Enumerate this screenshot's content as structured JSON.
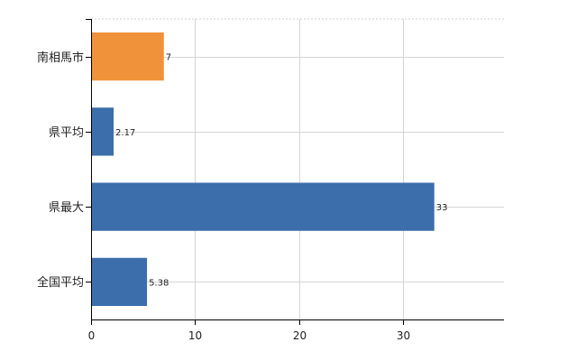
{
  "chart_data": {
    "type": "bar",
    "orientation": "horizontal",
    "categories": [
      "南相馬市",
      "県平均",
      "県最大",
      "全国平均"
    ],
    "values": [
      7,
      2.17,
      33,
      5.38
    ],
    "data_labels": [
      "7",
      "2.17",
      "33",
      "5.38"
    ],
    "colors": [
      "#f0923a",
      "#3b6eab",
      "#3b6eab",
      "#3b6eab"
    ],
    "xlim": [
      0,
      39.7
    ],
    "xticks": [
      0,
      10,
      20,
      30
    ],
    "grid": true,
    "legend": "none"
  }
}
